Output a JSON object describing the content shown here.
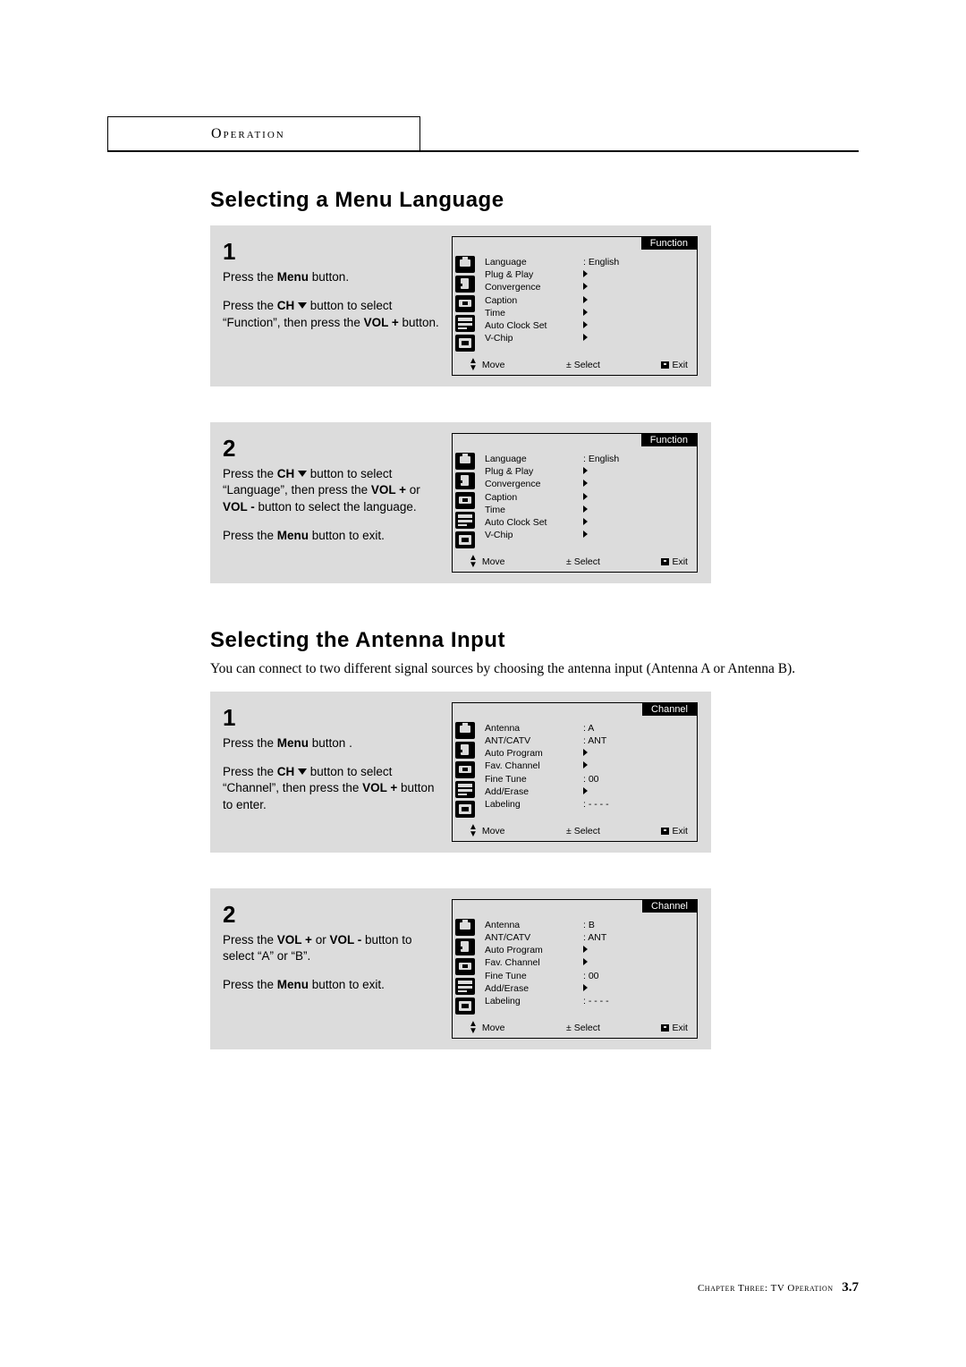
{
  "header_box": "Operation",
  "section1": {
    "title": "Selecting a Menu Language",
    "steps": [
      {
        "num": "1",
        "paras": [
          [
            {
              "t": "Press the "
            },
            {
              "t": "Menu ",
              "b": true
            },
            {
              "t": "button."
            }
          ],
          [
            {
              "t": "Press the "
            },
            {
              "t": "CH ",
              "b": true
            },
            {
              "chv": true
            },
            {
              "t": " button to select “Function”, then press the "
            },
            {
              "t": "VOL +",
              "b": true
            },
            {
              "t": " button."
            }
          ]
        ],
        "osd": {
          "title": "Function",
          "rows": [
            {
              "label": "Language",
              "value": ": English"
            },
            {
              "label": "Plug & Play",
              "arrow": true
            },
            {
              "label": "Convergence",
              "arrow": true
            },
            {
              "label": "Caption",
              "arrow": true
            },
            {
              "label": "Time",
              "arrow": true
            },
            {
              "label": "Auto Clock Set",
              "arrow": true
            },
            {
              "label": "V-Chip",
              "arrow": true
            }
          ]
        }
      },
      {
        "num": "2",
        "paras": [
          [
            {
              "t": "Press the "
            },
            {
              "t": "CH ",
              "b": true
            },
            {
              "chv": true
            },
            {
              "t": " button to select “Language”, then press the "
            },
            {
              "t": "VOL +",
              "b": true
            },
            {
              "t": " or "
            },
            {
              "t": "VOL -",
              "b": true
            },
            {
              "t": " button to select the language."
            }
          ],
          [
            {
              "t": "Press the "
            },
            {
              "t": "Menu ",
              "b": true
            },
            {
              "t": "button to exit."
            }
          ]
        ],
        "osd": {
          "title": "Function",
          "rows": [
            {
              "label": "Language",
              "value": ": English"
            },
            {
              "label": "Plug & Play",
              "arrow": true
            },
            {
              "label": "Convergence",
              "arrow": true
            },
            {
              "label": "Caption",
              "arrow": true
            },
            {
              "label": "Time",
              "arrow": true
            },
            {
              "label": "Auto Clock Set",
              "arrow": true
            },
            {
              "label": "V-Chip",
              "arrow": true
            }
          ]
        }
      }
    ]
  },
  "section2": {
    "title": "Selecting the Antenna Input",
    "intro": "You can connect to two different signal sources by choosing the antenna input (Antenna A or Antenna B).",
    "steps": [
      {
        "num": "1",
        "paras": [
          [
            {
              "t": "Press the "
            },
            {
              "t": "Menu ",
              "b": true
            },
            {
              "t": "button ."
            }
          ],
          [
            {
              "t": "Press the "
            },
            {
              "t": "CH ",
              "b": true
            },
            {
              "chv": true
            },
            {
              "t": " button to select “Channel”, then press the "
            },
            {
              "t": "VOL +",
              "b": true
            },
            {
              "t": " button to enter."
            }
          ]
        ],
        "osd": {
          "title": "Channel",
          "rows": [
            {
              "label": "Antenna",
              "value": ": A"
            },
            {
              "label": "ANT/CATV",
              "value": ": ANT"
            },
            {
              "label": "Auto Program",
              "arrow": true
            },
            {
              "label": "Fav. Channel",
              "arrow": true
            },
            {
              "label": "Fine Tune",
              "value": ":  00"
            },
            {
              "label": "Add/Erase",
              "arrow": true
            },
            {
              "label": "Labeling",
              "value": ":  - - - -"
            }
          ]
        }
      },
      {
        "num": "2",
        "paras": [
          [
            {
              "t": "Press the "
            },
            {
              "t": "VOL + ",
              "b": true
            },
            {
              "t": "or  "
            },
            {
              "t": "VOL -",
              "b": true
            },
            {
              "t": " button to select  “A” or “B”."
            }
          ],
          [
            {
              "t": "Press the "
            },
            {
              "t": "Menu ",
              "b": true
            },
            {
              "t": "button to exit."
            }
          ]
        ],
        "osd": {
          "title": "Channel",
          "rows": [
            {
              "label": "Antenna",
              "value": ": B"
            },
            {
              "label": "ANT/CATV",
              "value": ": ANT"
            },
            {
              "label": "Auto Program",
              "arrow": true
            },
            {
              "label": "Fav. Channel",
              "arrow": true
            },
            {
              "label": "Fine Tune",
              "value": ":  00"
            },
            {
              "label": "Add/Erase",
              "arrow": true
            },
            {
              "label": "Labeling",
              "value": ":  - - - -"
            }
          ]
        }
      }
    ]
  },
  "osd_footer": {
    "move": "Move",
    "select": "Select",
    "exit": "Exit"
  },
  "page_footer": {
    "chapter": "Chapter Three: TV Operation",
    "page": "3.7"
  },
  "colors": {
    "gray": "#dcdcdc",
    "black": "#000000",
    "white": "#ffffff"
  }
}
